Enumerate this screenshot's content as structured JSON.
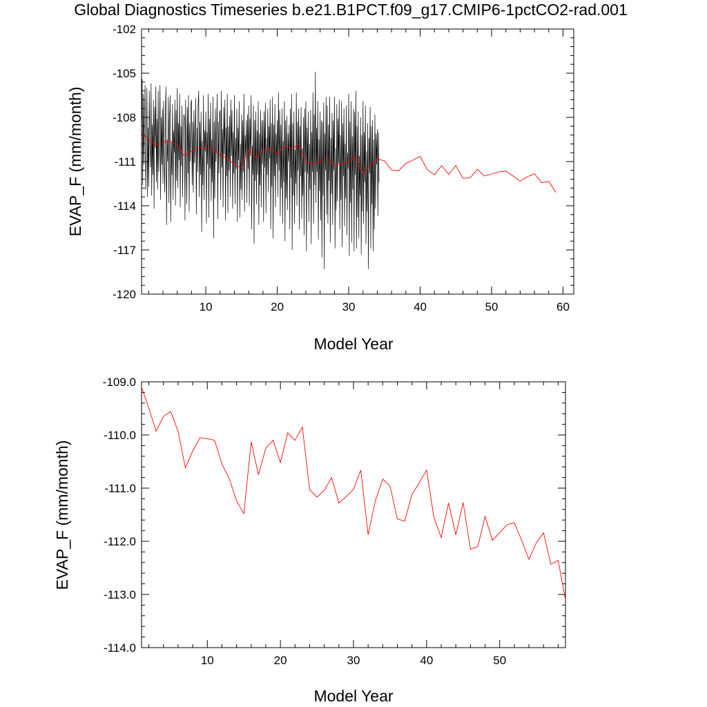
{
  "title": "Global Diagnostics Timeseries b.e21.B1PCT.f09_g17.CMIP6-1pctCO2-rad.001",
  "chart_data": [
    {
      "type": "line",
      "xlabel": "Model Year",
      "ylabel": "EVAP_F (mm/month)",
      "xlim": [
        1,
        61.5
      ],
      "ylim": [
        -120,
        -102
      ],
      "xticks": [
        "10",
        "20",
        "30",
        "40",
        "50",
        "60"
      ],
      "yticks": [
        "-120",
        "-117",
        "-114",
        "-111",
        "-108",
        "-105",
        "-102"
      ],
      "grid": false,
      "monthly_series": {
        "name": "",
        "color": "#000000",
        "values": [
          -109.5,
          -105.4,
          -112.6,
          -106.4,
          -111.2,
          -107.9,
          -105.8,
          -112.9,
          -110.3,
          -106.0,
          -113.4,
          -108.7,
          -112.7,
          -106.2,
          -109.9,
          -111.4,
          -105.7,
          -113.3,
          -108.5,
          -111.9,
          -106.8,
          -114.2,
          -107.3,
          -110.1,
          -105.9,
          -112.4,
          -108.1,
          -112.9,
          -106.2,
          -111.7,
          -109.4,
          -105.8,
          -113.6,
          -108.0,
          -111.2,
          -107.4,
          -112.5,
          -106.9,
          -110.7,
          -113.1,
          -107.8,
          -105.9,
          -115.3,
          -109.5,
          -111.0,
          -106.6,
          -113.8,
          -108.3,
          -106.5,
          -115.1,
          -109.7,
          -111.9,
          -107.1,
          -113.6,
          -108.9,
          -110.4,
          -106.8,
          -114.0,
          -107.5,
          -112.3,
          -106.0,
          -112.8,
          -108.4,
          -110.9,
          -106.4,
          -114.1,
          -108.6,
          -111.3,
          -107.2,
          -113.4,
          -109.5,
          -107.8,
          -108.0,
          -115.0,
          -106.8,
          -110.2,
          -113.9,
          -107.3,
          -111.8,
          -106.5,
          -114.4,
          -108.4,
          -111.0,
          -107.1,
          -106.8,
          -112.6,
          -108.3,
          -113.1,
          -107.5,
          -111.1,
          -109.7,
          -106.7,
          -114.6,
          -108.7,
          -111.7,
          -107.2,
          -106.2,
          -113.4,
          -108.3,
          -111.9,
          -107.6,
          -115.8,
          -109.6,
          -112.6,
          -106.5,
          -113.6,
          -108.9,
          -110.3,
          -107.6,
          -115.2,
          -109.0,
          -111.2,
          -106.4,
          -114.8,
          -108.1,
          -111.5,
          -107.0,
          -113.7,
          -109.5,
          -112.4,
          -106.6,
          -116.2,
          -108.3,
          -113.5,
          -107.4,
          -111.0,
          -109.7,
          -106.4,
          -114.9,
          -108.3,
          -111.8,
          -107.9,
          -107.5,
          -113.6,
          -106.2,
          -111.4,
          -108.8,
          -114.1,
          -107.3,
          -110.5,
          -106.8,
          -115.0,
          -108.7,
          -112.0,
          -106.4,
          -114.5,
          -108.6,
          -111.6,
          -107.9,
          -113.4,
          -106.8,
          -110.6,
          -107.5,
          -114.2,
          -109.0,
          -111.8,
          -106.5,
          -113.9,
          -109.4,
          -111.5,
          -107.4,
          -115.1,
          -108.7,
          -110.9,
          -106.9,
          -114.8,
          -109.8,
          -112.9,
          -107.8,
          -113.6,
          -108.2,
          -111.7,
          -106.4,
          -114.4,
          -109.2,
          -110.6,
          -108.2,
          -113.8,
          -107.8,
          -111.5,
          -107.2,
          -114.0,
          -108.1,
          -110.6,
          -106.5,
          -115.6,
          -109.9,
          -111.9,
          -107.2,
          -116.6,
          -108.2,
          -112.3,
          -107.6,
          -113.9,
          -108.9,
          -111.9,
          -106.9,
          -115.3,
          -109.1,
          -112.6,
          -107.5,
          -114.1,
          -108.2,
          -111.2,
          -108.2,
          -115.1,
          -107.6,
          -111.4,
          -107.0,
          -114.5,
          -109.4,
          -111.9,
          -107.4,
          -113.1,
          -108.6,
          -110.8,
          -106.8,
          -115.6,
          -108.4,
          -112.7,
          -106.6,
          -116.2,
          -108.5,
          -112.0,
          -107.1,
          -114.1,
          -109.1,
          -111.2,
          -108.2,
          -113.4,
          -106.3,
          -111.6,
          -107.5,
          -114.7,
          -108.5,
          -112.8,
          -107.4,
          -115.2,
          -109.6,
          -112.4,
          -106.9,
          -116.4,
          -108.2,
          -113.5,
          -107.9,
          -114.3,
          -109.1,
          -111.0,
          -108.5,
          -115.6,
          -107.4,
          -112.1,
          -106.4,
          -117.0,
          -108.4,
          -113.3,
          -107.6,
          -115.2,
          -110.2,
          -112.5,
          -106.3,
          -114.0,
          -108.3,
          -111.6,
          -107.4,
          -115.6,
          -108.6,
          -112.0,
          -107.3,
          -114.9,
          -110.1,
          -113.3,
          -108.0,
          -116.0,
          -107.4,
          -111.7,
          -106.9,
          -117.1,
          -108.7,
          -111.8,
          -107.6,
          -115.1,
          -109.8,
          -112.9,
          -107.5,
          -116.6,
          -109.0,
          -111.7,
          -106.3,
          -115.2,
          -107.8,
          -112.6,
          -104.9,
          -113.8,
          -108.7,
          -111.7,
          -106.9,
          -116.3,
          -109.5,
          -113.0,
          -107.6,
          -115.0,
          -108.2,
          -117.5,
          -108.3,
          -113.3,
          -107.0,
          -118.3,
          -109.1,
          -111.6,
          -106.6,
          -114.6,
          -107.2,
          -115.2,
          -108.5,
          -112.3,
          -106.6,
          -116.5,
          -109.4,
          -113.2,
          -107.7,
          -115.3,
          -108.2,
          -111.6,
          -106.6,
          -116.9,
          -110.1,
          -114.3,
          -107.1,
          -113.7,
          -108.1,
          -111.1,
          -106.8,
          -115.6,
          -109.2,
          -113.6,
          -106.9,
          -116.8,
          -108.4,
          -112.0,
          -107.4,
          -115.4,
          -109.8,
          -113.5,
          -107.2,
          -116.0,
          -110.4,
          -111.5,
          -106.4,
          -117.4,
          -108.3,
          -113.8,
          -106.9,
          -116.5,
          -109.3,
          -112.9,
          -107.4,
          -117.1,
          -107.6,
          -111.9,
          -106.2,
          -116.9,
          -108.6,
          -114.8,
          -107.6,
          -116.2,
          -110.6,
          -113.3,
          -108.0,
          -117.3,
          -109.2,
          -114.4,
          -106.9,
          -115.2,
          -109.0,
          -112.4,
          -107.2,
          -116.6,
          -110.3,
          -114.4,
          -108.4,
          -118.3,
          -109.4,
          -111.8,
          -107.3,
          -116.9,
          -108.6,
          -113.9,
          -108.2,
          -117.1,
          -109.5,
          -115.6,
          -107.8,
          -114.2,
          -109.1,
          -111.2,
          -108.8,
          -114.7,
          -109.0,
          -112.4
        ]
      },
      "annual_series": {
        "name": "",
        "color": "#ff0000",
        "values": [
          -109.1,
          -109.5,
          -109.9,
          -109.7,
          -109.6,
          -109.9,
          -110.6,
          -110.3,
          -110.05,
          -110.07,
          -110.1,
          -110.55,
          -110.8,
          -111.2,
          -111.45,
          -110.13,
          -110.75,
          -110.25,
          -110.1,
          -110.5,
          -109.95,
          -110.1,
          -109.85,
          -111.0,
          -111.15,
          -111.0,
          -110.8,
          -111.25,
          -111.15,
          -111.0,
          -110.65,
          -111.85,
          -111.25,
          -110.82,
          -110.95,
          -111.58,
          -111.62,
          -111.12,
          -110.9,
          -110.65,
          -111.55,
          -111.9,
          -111.28,
          -111.87,
          -111.27,
          -112.14,
          -112.1,
          -111.53,
          -111.98,
          -111.85,
          -111.7,
          -111.65,
          -111.98,
          -112.33,
          -112.03,
          -111.83,
          -112.43,
          -112.35,
          -113.1
        ]
      }
    },
    {
      "type": "line",
      "xlabel": "Model Year",
      "ylabel": "EVAP_F (mm/month)",
      "xlim": [
        1,
        59
      ],
      "ylim": [
        -114,
        -109
      ],
      "xticks": [
        "10",
        "20",
        "30",
        "40",
        "50"
      ],
      "yticks": [
        "-114.0",
        "-113.0",
        "-112.0",
        "-111.0",
        "-110.0",
        "-109.0"
      ],
      "grid": false,
      "annual_series": {
        "name": "",
        "color": "#ff0000",
        "values": [
          -109.1,
          -109.5,
          -109.93,
          -109.65,
          -109.56,
          -109.93,
          -110.62,
          -110.3,
          -110.05,
          -110.07,
          -110.1,
          -110.55,
          -110.82,
          -111.24,
          -111.48,
          -110.13,
          -110.75,
          -110.25,
          -110.1,
          -110.52,
          -109.96,
          -110.1,
          -109.85,
          -111.03,
          -111.17,
          -111.04,
          -110.8,
          -111.28,
          -111.16,
          -111.02,
          -110.66,
          -111.88,
          -111.23,
          -110.83,
          -110.96,
          -111.58,
          -111.62,
          -111.12,
          -110.9,
          -110.66,
          -111.55,
          -111.93,
          -111.28,
          -111.88,
          -111.27,
          -112.15,
          -112.1,
          -111.53,
          -111.98,
          -111.84,
          -111.69,
          -111.65,
          -111.98,
          -112.34,
          -112.03,
          -111.84,
          -112.43,
          -112.36,
          -113.1
        ]
      }
    }
  ]
}
